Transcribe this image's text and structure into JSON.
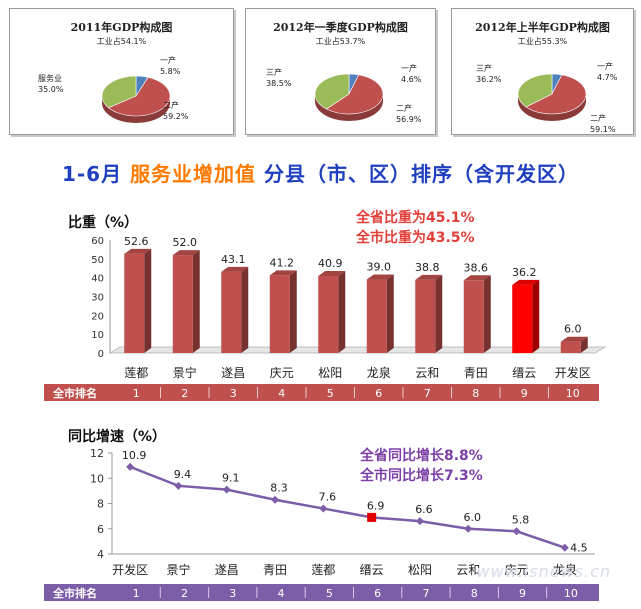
{
  "pies": [
    {
      "title": "2011年GDP构成图",
      "subtitle": "工业占54.1%",
      "slices": [
        {
          "name": "一产",
          "value": 5.8,
          "value_label": "5.8%",
          "color": "#4f81bd"
        },
        {
          "name": "二产",
          "value": 59.2,
          "value_label": "59.2%",
          "color": "#c0504d"
        },
        {
          "name": "服务业",
          "value": 35.0,
          "value_label": "35.0%",
          "color": "#9bbb59"
        }
      ]
    },
    {
      "title": "2012年一季度GDP构成图",
      "subtitle": "工业占53.7%",
      "slices": [
        {
          "name": "一产",
          "value": 4.6,
          "value_label": "4.6%",
          "color": "#4f81bd"
        },
        {
          "name": "二产",
          "value": 56.9,
          "value_label": "56.9%",
          "color": "#c0504d"
        },
        {
          "name": "三产",
          "value": 38.5,
          "value_label": "38.5%",
          "color": "#9bbb59"
        }
      ]
    },
    {
      "title": "2012年上半年GDP构成图",
      "subtitle": "工业占55.3%",
      "slices": [
        {
          "name": "一产",
          "value": 4.7,
          "value_label": "4.7%",
          "color": "#4f81bd"
        },
        {
          "name": "二产",
          "value": 59.1,
          "value_label": "59.1%",
          "color": "#c0504d"
        },
        {
          "name": "三产",
          "value": 36.2,
          "value_label": "36.2%",
          "color": "#9bbb59"
        }
      ]
    }
  ],
  "headline": {
    "part1": "1-6月",
    "part2": "服务业增加值",
    "part3": "分县（市、区）排序（含开发区）"
  },
  "rank_label": "全市排名",
  "watermark": "www.lsnews.cn",
  "chart_data": [
    {
      "type": "bar",
      "ylabel": "比重（%）",
      "annotations": [
        "全省比重为45.1%",
        "全市比重为43.5%"
      ],
      "categories": [
        "莲都",
        "景宁",
        "遂昌",
        "庆元",
        "松阳",
        "龙泉",
        "云和",
        "青田",
        "缙云",
        "开发区"
      ],
      "values": [
        52.6,
        52.0,
        43.1,
        41.2,
        40.9,
        39.0,
        38.8,
        38.6,
        36.2,
        6.0
      ],
      "value_labels": [
        "52.6",
        "52.0",
        "43.1",
        "41.2",
        "40.9",
        "39.0",
        "38.8",
        "38.6",
        "36.2",
        "6.0"
      ],
      "ranks": [
        "1",
        "2",
        "3",
        "4",
        "5",
        "6",
        "7",
        "8",
        "9",
        "10"
      ],
      "highlight": "缙云",
      "ylim": [
        0,
        60
      ],
      "yticks": [
        "0",
        "10",
        "20",
        "30",
        "40",
        "50",
        "60"
      ],
      "colors": {
        "bar": "#c0504d",
        "highlight": "#ff0000",
        "rank_bar": "#c0504d"
      }
    },
    {
      "type": "line",
      "ylabel": "同比增速（%）",
      "annotations": [
        "全省同比增长8.8%",
        "全市同比增长7.3%"
      ],
      "categories": [
        "开发区",
        "景宁",
        "遂昌",
        "青田",
        "莲都",
        "缙云",
        "松阳",
        "云和",
        "庆元",
        "龙泉"
      ],
      "values": [
        10.9,
        9.4,
        9.1,
        8.3,
        7.6,
        6.9,
        6.6,
        6.0,
        5.8,
        4.5
      ],
      "value_labels": [
        "10.9",
        "9.4",
        "9.1",
        "8.3",
        "7.6",
        "6.9",
        "6.6",
        "6.0",
        "5.8",
        "4.5"
      ],
      "ranks": [
        "1",
        "2",
        "3",
        "4",
        "5",
        "6",
        "7",
        "8",
        "9",
        "10"
      ],
      "highlight": "缙云",
      "ylim": [
        4,
        12
      ],
      "yticks": [
        "4",
        "6",
        "8",
        "10",
        "12"
      ],
      "colors": {
        "line": "#7b5ea7",
        "highlight": "#e00000",
        "rank_bar": "#7b5ea7"
      }
    }
  ]
}
